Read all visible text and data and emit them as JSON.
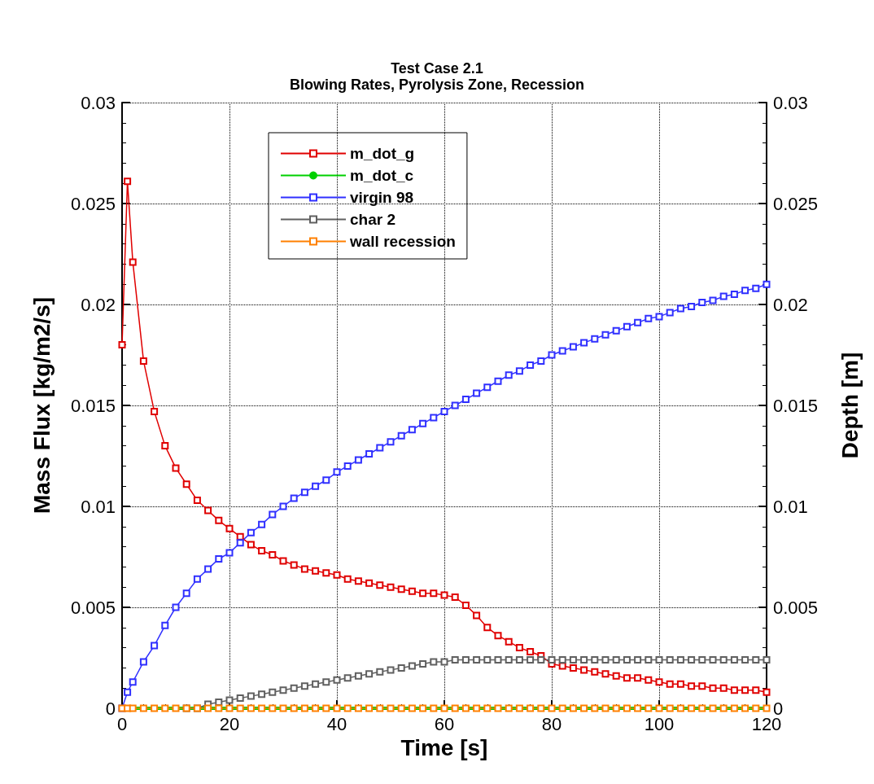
{
  "chart_data": {
    "type": "line",
    "title": "Test Case 2.1",
    "subtitle": "Blowing Rates, Pyrolysis Zone, Recession",
    "xlabel": "Time [s]",
    "ylabel": "Mass Flux [kg/m2/s]",
    "y2label": "Depth [m]",
    "x": [
      0,
      1,
      2,
      4,
      6,
      8,
      10,
      12,
      14,
      16,
      18,
      20,
      22,
      24,
      26,
      28,
      30,
      32,
      34,
      36,
      38,
      40,
      42,
      44,
      46,
      48,
      50,
      52,
      54,
      56,
      58,
      60,
      62,
      64,
      66,
      68,
      70,
      72,
      74,
      76,
      78,
      80,
      82,
      84,
      86,
      88,
      90,
      92,
      94,
      96,
      98,
      100,
      102,
      104,
      106,
      108,
      110,
      112,
      114,
      116,
      118,
      120
    ],
    "series": [
      {
        "name": "m_dot_g",
        "color": "#e00000",
        "values": [
          0.018,
          0.0261,
          0.0221,
          0.0172,
          0.0147,
          0.013,
          0.0119,
          0.0111,
          0.0103,
          0.0098,
          0.0093,
          0.0089,
          0.0085,
          0.0081,
          0.0078,
          0.0076,
          0.0073,
          0.0071,
          0.0069,
          0.0068,
          0.0067,
          0.0066,
          0.0064,
          0.0063,
          0.0062,
          0.0061,
          0.006,
          0.0059,
          0.0058,
          0.0057,
          0.0057,
          0.0056,
          0.0055,
          0.0051,
          0.0046,
          0.004,
          0.0036,
          0.0033,
          0.003,
          0.0028,
          0.0026,
          0.0022,
          0.0021,
          0.002,
          0.0019,
          0.0018,
          0.0017,
          0.0016,
          0.0015,
          0.0015,
          0.0014,
          0.0013,
          0.0012,
          0.0012,
          0.0011,
          0.0011,
          0.001,
          0.001,
          0.0009,
          0.0009,
          0.0009,
          0.0008
        ]
      },
      {
        "name": "m_dot_c",
        "color": "#00d000",
        "marker": "none",
        "values": [
          0,
          0,
          0,
          0,
          0,
          0,
          0,
          0,
          0,
          0,
          0,
          0,
          0,
          0,
          0,
          0,
          0,
          0,
          0,
          0,
          0,
          0,
          0,
          0,
          0,
          0,
          0,
          0,
          0,
          0,
          0,
          0,
          0,
          0,
          0,
          0,
          0,
          0,
          0,
          0,
          0,
          0,
          0,
          0,
          0,
          0,
          0,
          0,
          0,
          0,
          0,
          0,
          0,
          0,
          0,
          0,
          0,
          0,
          0,
          0,
          0,
          0
        ]
      },
      {
        "name": "virgin 98",
        "color": "#3030ff",
        "values": [
          0,
          0.0008,
          0.0013,
          0.0023,
          0.0031,
          0.0041,
          0.005,
          0.0057,
          0.0064,
          0.0069,
          0.0074,
          0.0077,
          0.0082,
          0.0087,
          0.0091,
          0.0096,
          0.01,
          0.0104,
          0.0107,
          0.011,
          0.0113,
          0.0117,
          0.012,
          0.0123,
          0.0126,
          0.0129,
          0.0132,
          0.0135,
          0.0138,
          0.0141,
          0.0144,
          0.0147,
          0.015,
          0.0153,
          0.0156,
          0.0159,
          0.0162,
          0.0165,
          0.0167,
          0.017,
          0.0172,
          0.0175,
          0.0177,
          0.0179,
          0.0181,
          0.0183,
          0.0185,
          0.0187,
          0.0189,
          0.0191,
          0.0193,
          0.0194,
          0.0196,
          0.0198,
          0.0199,
          0.0201,
          0.0202,
          0.0204,
          0.0205,
          0.0207,
          0.0208,
          0.021
        ]
      },
      {
        "name": "char 2",
        "color": "#606060",
        "values": [
          null,
          null,
          null,
          null,
          null,
          null,
          null,
          0,
          0,
          0.0002,
          0.0003,
          0.0004,
          0.0005,
          0.0006,
          0.0007,
          0.0008,
          0.0009,
          0.001,
          0.0011,
          0.0012,
          0.0013,
          0.0014,
          0.0015,
          0.0016,
          0.0017,
          0.0018,
          0.0019,
          0.002,
          0.0021,
          0.0022,
          0.0023,
          0.0023,
          0.0024,
          0.0024,
          0.0024,
          0.0024,
          0.0024,
          0.0024,
          0.0024,
          0.0024,
          0.0024,
          0.0024,
          0.0024,
          0.0024,
          0.0024,
          0.0024,
          0.0024,
          0.0024,
          0.0024,
          0.0024,
          0.0024,
          0.0024,
          0.0024,
          0.0024,
          0.0024,
          0.0024,
          0.0024,
          0.0024,
          0.0024,
          0.0024,
          0.0024,
          0.0024
        ]
      },
      {
        "name": "wall recession",
        "color": "#ff8000",
        "values": [
          0,
          0,
          0,
          0,
          0,
          0,
          0,
          0,
          0,
          0,
          0,
          0,
          0,
          0,
          0,
          0,
          0,
          0,
          0,
          0,
          0,
          0,
          0,
          0,
          0,
          0,
          0,
          0,
          0,
          0,
          0,
          0,
          0,
          0,
          0,
          0,
          0,
          0,
          0,
          0,
          0,
          0,
          0,
          0,
          0,
          0,
          0,
          0,
          0,
          0,
          0,
          0,
          0,
          0,
          0,
          0,
          0,
          0,
          0,
          0,
          0,
          0
        ]
      }
    ],
    "xlim": [
      0,
      120
    ],
    "xticks": [
      0,
      20,
      40,
      60,
      80,
      100,
      120
    ],
    "ylim": [
      0,
      0.03
    ],
    "yticks": [
      0,
      0.005,
      0.01,
      0.015,
      0.02,
      0.025,
      0.03
    ],
    "y2lim": [
      0,
      0.03
    ],
    "y2ticks": [
      0,
      0.005,
      0.01,
      0.015,
      0.02,
      0.025,
      0.03
    ],
    "grid": true,
    "legend": "top",
    "marker": "square",
    "line_style": "solid"
  }
}
